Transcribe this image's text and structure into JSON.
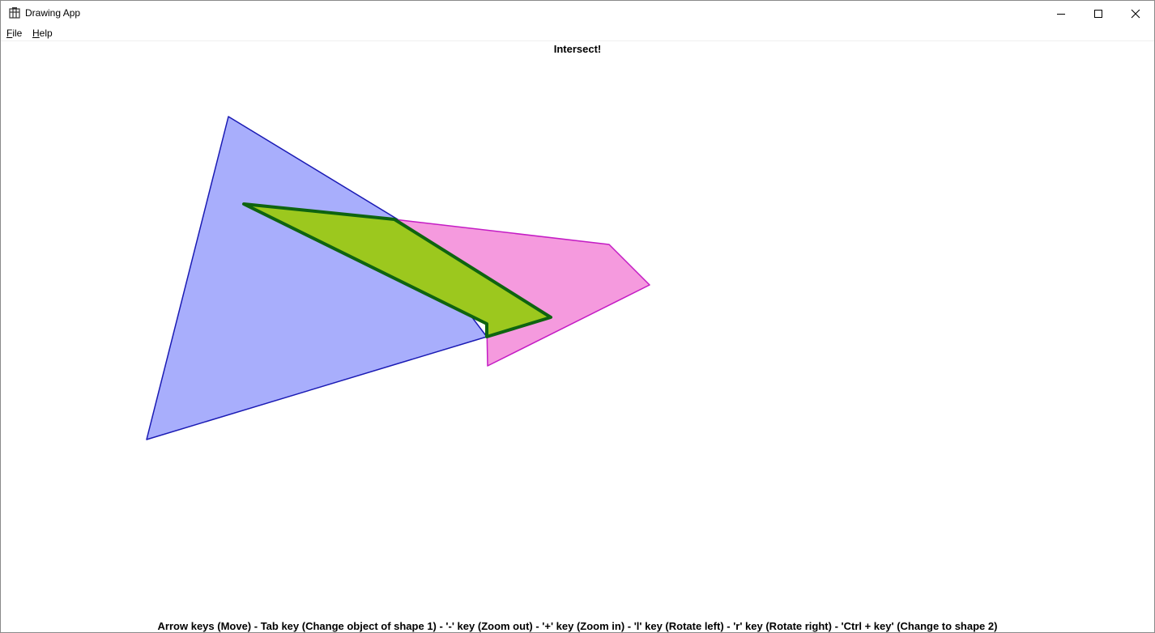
{
  "window": {
    "title": "Drawing App",
    "controls": {
      "minimize": "minimize",
      "maximize": "maximize",
      "close": "close"
    }
  },
  "menu": {
    "file": {
      "mnemonic": "F",
      "rest": "ile"
    },
    "help": {
      "mnemonic": "H",
      "rest": "elp"
    }
  },
  "status": "Intersect!",
  "help_text": "Arrow keys (Move)  -  Tab key (Change object of shape 1)  -  '-' key (Zoom out)  -  '+' key (Zoom in)  -  'l' key (Rotate left)  -  'r' key (Rotate right)  -  'Ctrl + key' (Change to shape 2)",
  "colors": {
    "shape1_fill": "#a8aefc",
    "shape1_stroke": "#1a1ab4",
    "shape2_fill": "#f59ade",
    "shape2_stroke": "#c41cc4",
    "intersection_fill": "#9cc81e",
    "intersection_stroke": "#0e6410"
  }
}
